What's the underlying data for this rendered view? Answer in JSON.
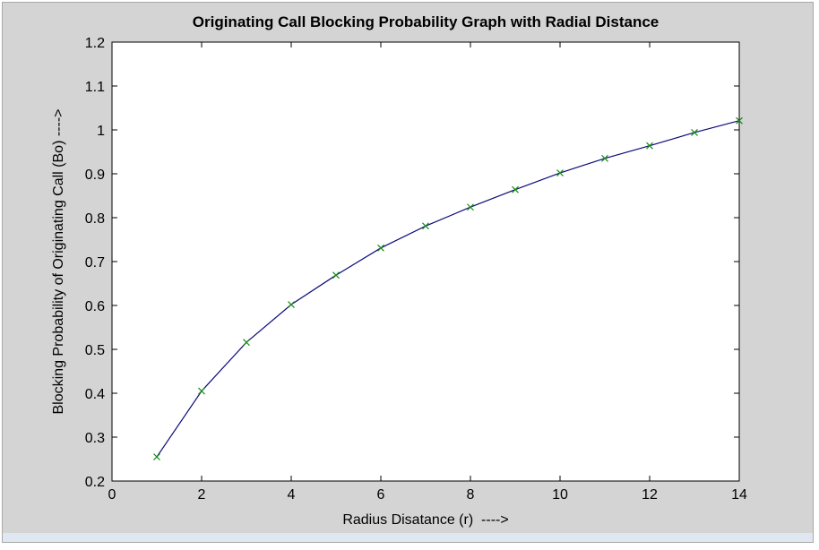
{
  "chart_data": {
    "type": "line",
    "title": "Originating Call Blocking Probability Graph with Radial Distance",
    "xlabel": "Radius Disatance (r)  ---->",
    "ylabel": "Blocking Probability of Originating Call (Bo) ---->",
    "xlim": [
      0,
      14
    ],
    "ylim": [
      0.2,
      1.2
    ],
    "x_ticks": [
      "0",
      "2",
      "4",
      "6",
      "8",
      "10",
      "12",
      "14"
    ],
    "x_tick_values": [
      0,
      2,
      4,
      6,
      8,
      10,
      12,
      14
    ],
    "y_ticks": [
      "0.2",
      "0.3",
      "0.4",
      "0.5",
      "0.6",
      "0.7",
      "0.8",
      "0.9",
      "1",
      "1.1",
      "1.2"
    ],
    "y_tick_values": [
      0.2,
      0.3,
      0.4,
      0.5,
      0.6,
      0.7,
      0.8,
      0.9,
      1.0,
      1.1,
      1.2
    ],
    "grid": false,
    "series": [
      {
        "x": [
          1,
          2,
          3,
          4,
          5,
          6,
          7,
          8,
          9,
          10,
          11,
          12,
          13,
          14
        ],
        "values": [
          0.255,
          0.405,
          0.516,
          0.602,
          0.669,
          0.731,
          0.781,
          0.824,
          0.864,
          0.902,
          0.935,
          0.964,
          0.994,
          1.021
        ],
        "line_color": "#0b0b7a",
        "marker": "x",
        "marker_color": "#1a8a1a"
      }
    ]
  }
}
